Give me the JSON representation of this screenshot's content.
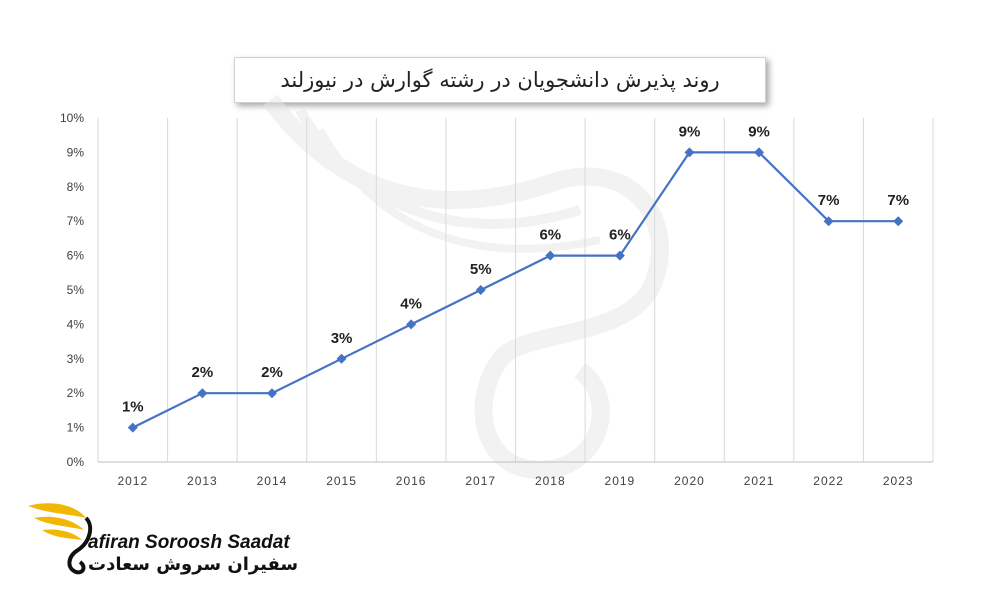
{
  "chart_data": {
    "type": "line",
    "title": "روند پذیرش دانشجویان در رشته گوارش در نیوزلند",
    "categories": [
      "2012",
      "2013",
      "2014",
      "2015",
      "2016",
      "2017",
      "2018",
      "2019",
      "2020",
      "2021",
      "2022",
      "2023"
    ],
    "series": [
      {
        "values": [
          1,
          2,
          2,
          3,
          4,
          5,
          6,
          6,
          9,
          9,
          7,
          7
        ]
      }
    ],
    "data_labels": [
      "1%",
      "2%",
      "2%",
      "3%",
      "4%",
      "5%",
      "6%",
      "6%",
      "9%",
      "9%",
      "7%",
      "7%"
    ],
    "y_ticks": [
      "0%",
      "1%",
      "2%",
      "3%",
      "4%",
      "5%",
      "6%",
      "7%",
      "8%",
      "9%",
      "10%"
    ],
    "ylim": [
      0,
      10
    ],
    "xlabel": "",
    "ylabel": "",
    "grid": "vertical",
    "line_color": "#4472C4",
    "marker": "diamond"
  },
  "logo": {
    "name_en": "afiran Soroosh Saadat",
    "name_fa": "سفیران سروش سعادت",
    "accent_color": "#F2B705"
  }
}
